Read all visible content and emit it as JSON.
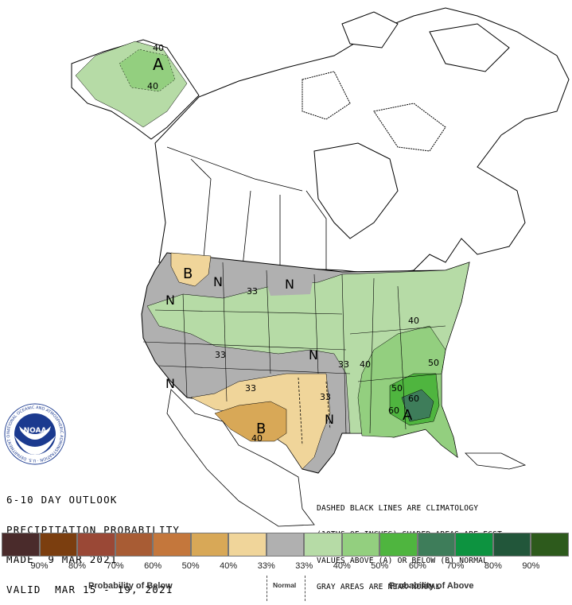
{
  "title_lines": [
    "6-10 DAY OUTLOOK",
    "PRECIPITATION PROBABILITY",
    "MADE  9 MAR 2021",
    "VALID  MAR 15 - 19, 2021"
  ],
  "note_lines": [
    "DASHED BLACK LINES ARE CLIMATOLOGY",
    "(10THS OF INCHES) SHADED AREAS ARE FCST",
    "VALUES ABOVE (A) OR BELOW (B) NORMAL",
    "GRAY AREAS ARE NEAR-NORMAL"
  ],
  "legend": {
    "colors": [
      "#4a2b2b",
      "#7b3e0f",
      "#9a4836",
      "#a85c34",
      "#c4773c",
      "#d8a857",
      "#f0d59a",
      "#b0b0b0",
      "#b6dba6",
      "#93cf7f",
      "#4fb53f",
      "#3e7d5a",
      "#0d9340",
      "#22563a",
      "#2d5a1c"
    ],
    "labels": [
      "90%",
      "80%",
      "70%",
      "60%",
      "50%",
      "40%",
      "33%",
      "33%",
      "40%",
      "50%",
      "60%",
      "70%",
      "80%",
      "90%"
    ],
    "below_caption": "Probability of Below",
    "normal_caption": "Normal",
    "above_caption": "Probability of Above"
  },
  "logo": {
    "center_text": "NOAA",
    "ring_text": "NATIONAL OCEANIC AND ATMOSPHERIC ADMINISTRATION · U.S. DEPARTMENT OF COMMERCE"
  },
  "map_labels": {
    "alaska_A": "A",
    "alaska_40_top": "40",
    "alaska_40_bottom": "40",
    "b_northwest": "B",
    "n_idaho": "N",
    "n_nevada": "N",
    "n_dakotas": "N",
    "n_southwest": "N",
    "n_plains": "N",
    "n_texas": "N",
    "v33_montana": "33",
    "v33_colorado": "33",
    "v33_arizona": "33",
    "v33_kansas": "33",
    "v33_oklahoma": "33",
    "v40_missouri": "40",
    "v40_ohio": "40",
    "b_texas": "B",
    "v40_texas": "40",
    "v50_carolina": "50",
    "v50_georgia": "50",
    "v60_georgia": "60",
    "v60_florida": "60",
    "a_southeast": "A"
  },
  "colors": {
    "near_normal_gray": "#b0b0b0",
    "above_40": "#b6dba6",
    "above_50": "#93cf7f",
    "above_60": "#4fb53f",
    "above_70": "#3e7d5a",
    "below_33": "#f0d59a",
    "below_40": "#d8a857",
    "noaa_blue": "#1b3a8f"
  }
}
